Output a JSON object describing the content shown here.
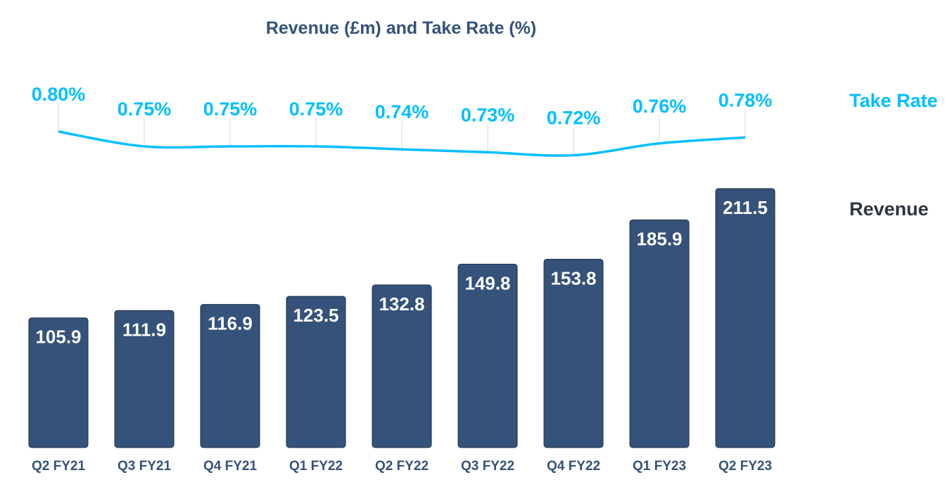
{
  "chart_data": {
    "type": "bar+line",
    "title": "Revenue (£m) and Take Rate (%)",
    "categories": [
      "Q2 FY21",
      "Q3 FY21",
      "Q4 FY21",
      "Q1 FY22",
      "Q2 FY22",
      "Q3 FY22",
      "Q4 FY22",
      "Q1 FY23",
      "Q2 FY23"
    ],
    "series": [
      {
        "name": "Revenue",
        "type": "bar",
        "color": "#34527a",
        "values": [
          105.9,
          111.9,
          116.9,
          123.5,
          132.8,
          149.8,
          153.8,
          185.9,
          211.5
        ],
        "labels": [
          "105.9",
          "111.9",
          "116.9",
          "123.5",
          "132.8",
          "149.8",
          "153.8",
          "185.9",
          "211.5"
        ]
      },
      {
        "name": "Take Rate",
        "type": "line",
        "color": "#00bfff",
        "values": [
          0.8,
          0.75,
          0.75,
          0.75,
          0.74,
          0.73,
          0.72,
          0.76,
          0.78
        ],
        "labels": [
          "0.80%",
          "0.75%",
          "0.75%",
          "0.75%",
          "0.74%",
          "0.73%",
          "0.72%",
          "0.76%",
          "0.78%"
        ]
      }
    ],
    "legend": "right",
    "grid": false
  }
}
